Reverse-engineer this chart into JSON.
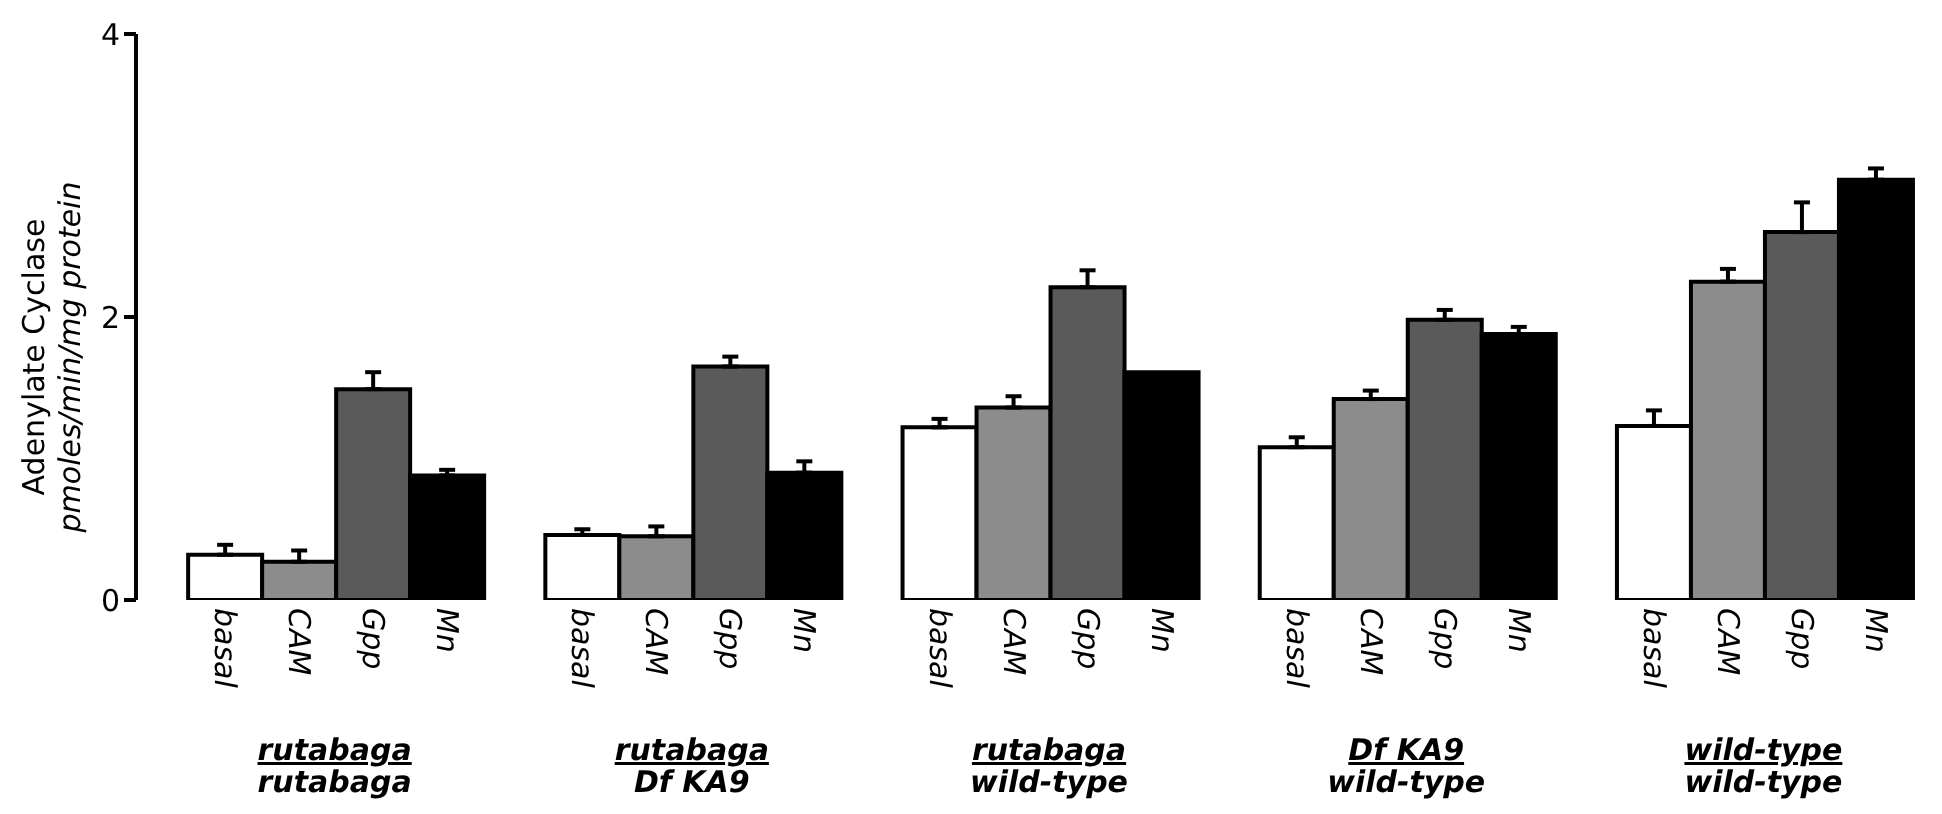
{
  "chart_data": {
    "type": "bar",
    "ylabel": "Adenylate Cyclase\npmoles/min/mg protein",
    "categories": [
      "rutabaga\nrutabaga",
      "rutabaga\nDf KA9",
      "rutabaga\nwild-type",
      "Df KA9\nwild-type",
      "wild-type\nwild-type"
    ],
    "series": [
      {
        "name": "basal",
        "color": "#ffffff",
        "values": [
          0.32,
          0.46,
          1.22,
          1.08,
          1.23
        ],
        "errors": [
          [
            0.32,
            0.39
          ],
          [
            0.46,
            0.5
          ],
          [
            1.22,
            1.28
          ],
          [
            1.08,
            1.15
          ],
          [
            1.23,
            1.34
          ]
        ]
      },
      {
        "name": "CAM",
        "color": "#8c8c8c",
        "values": [
          0.27,
          0.45,
          1.36,
          1.42,
          2.25
        ],
        "errors": [
          [
            0.27,
            0.35
          ],
          [
            0.45,
            0.52
          ],
          [
            1.36,
            1.44
          ],
          [
            1.42,
            1.48
          ],
          [
            2.25,
            2.34
          ]
        ]
      },
      {
        "name": "Gpp",
        "color": "#5a5a5a",
        "values": [
          1.49,
          1.65,
          2.21,
          1.98,
          2.6
        ],
        "errors": [
          [
            1.49,
            1.61
          ],
          [
            1.65,
            1.72
          ],
          [
            2.21,
            2.33
          ],
          [
            1.98,
            2.05
          ],
          [
            2.6,
            2.81
          ]
        ]
      },
      {
        "name": "Mn",
        "color": "#000000",
        "values": [
          0.88,
          0.9,
          1.61,
          1.88,
          2.97
        ],
        "errors": [
          [
            0.88,
            0.92
          ],
          [
            0.9,
            0.98
          ],
          null,
          [
            1.88,
            1.93
          ],
          [
            2.97,
            3.05
          ]
        ]
      }
    ],
    "ylim": [
      0,
      4
    ],
    "yticks": [
      0,
      2,
      4
    ],
    "grid": false,
    "legend": false
  }
}
